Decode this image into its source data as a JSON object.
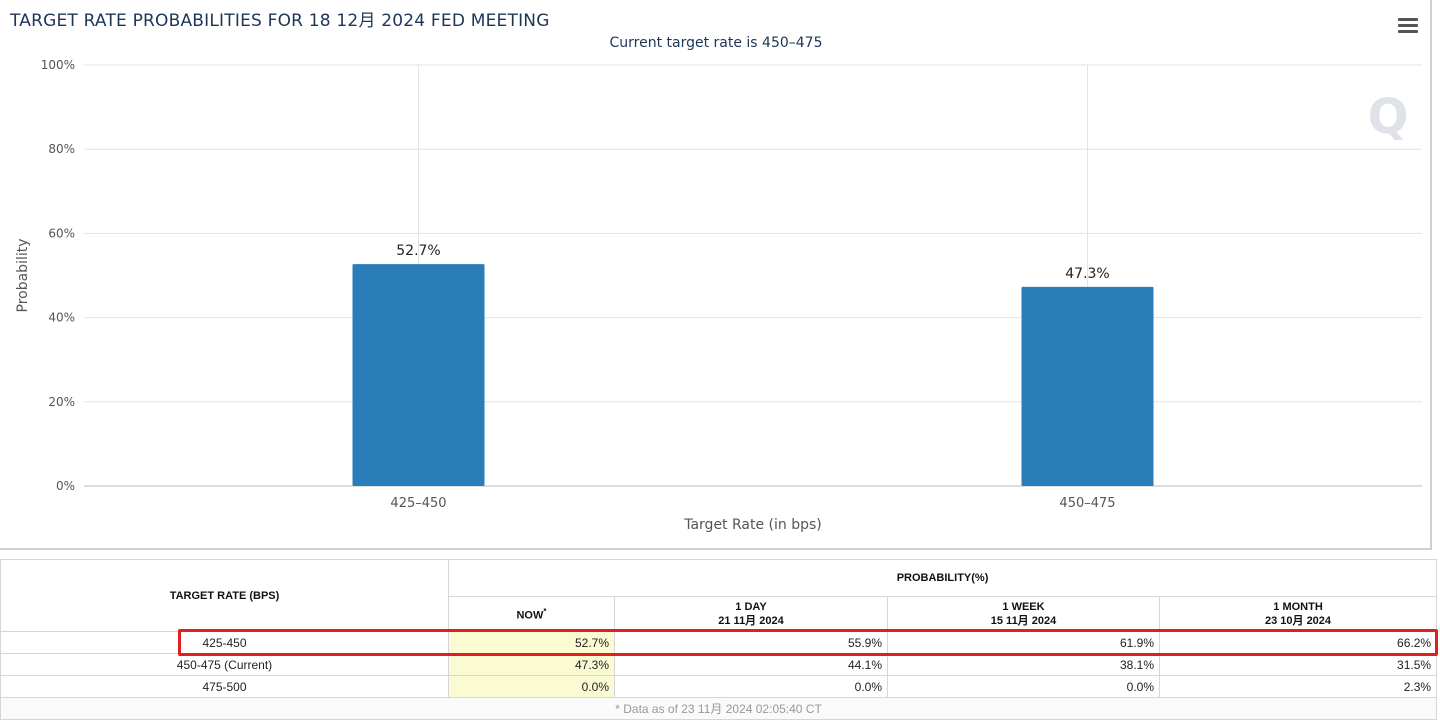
{
  "chart": {
    "title": "TARGET RATE PROBABILITIES FOR 18 12月 2024 FED MEETING",
    "subtitle": "Current target rate is 450–475",
    "watermark": "Q"
  },
  "chart_data": {
    "type": "bar",
    "title": "TARGET RATE PROBABILITIES FOR 18 12月 2024 FED MEETING",
    "subtitle": "Current target rate is 450–475",
    "categories": [
      "425–450",
      "450–475"
    ],
    "values": [
      52.7,
      47.3
    ],
    "value_labels": [
      "52.7%",
      "47.3%"
    ],
    "xlabel": "Target Rate (in bps)",
    "ylabel": "Probability",
    "ylim": [
      0,
      100
    ],
    "yticks": [
      0,
      20,
      40,
      60,
      80,
      100
    ],
    "ytick_labels": [
      "0%",
      "20%",
      "40%",
      "60%",
      "80%",
      "100%"
    ],
    "grid": true,
    "bar_color": "#2a7db8"
  },
  "table": {
    "rate_header": "TARGET RATE (BPS)",
    "prob_header": "PROBABILITY(%)",
    "now_label": "NOW",
    "now_marker": "*",
    "columns": [
      {
        "label": "1 DAY",
        "date": "21 11月 2024"
      },
      {
        "label": "1 WEEK",
        "date": "15 11月 2024"
      },
      {
        "label": "1 MONTH",
        "date": "23 10月 2024"
      }
    ],
    "rows": [
      {
        "rate": "425-450",
        "now": "52.7%",
        "day": "55.9%",
        "week": "61.9%",
        "month": "66.2%"
      },
      {
        "rate": "450-475 (Current)",
        "now": "47.3%",
        "day": "44.1%",
        "week": "38.1%",
        "month": "31.5%"
      },
      {
        "rate": "475-500",
        "now": "0.0%",
        "day": "0.0%",
        "week": "0.0%",
        "month": "2.3%"
      }
    ],
    "footnote": "* Data as of 23 11月 2024 02:05:40 CT"
  },
  "colors": {
    "highlight": "#e0201c",
    "now_column": "#fbfbd3",
    "title": "#1d3557"
  }
}
